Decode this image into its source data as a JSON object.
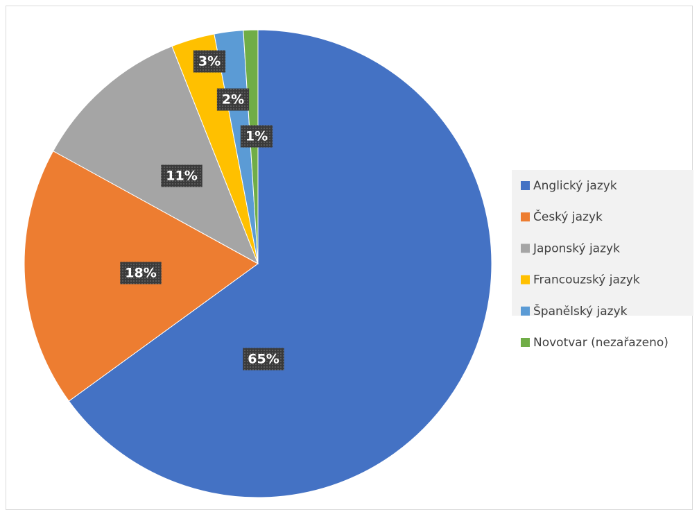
{
  "chart_data": {
    "type": "pie",
    "categories": [
      "Anglický jazyk",
      "Český jazyk",
      "Japonský jazyk",
      "Francouzský jazyk",
      "Španělský jazyk",
      "Novotvar (nezařazeno)"
    ],
    "values": [
      65,
      18,
      11,
      3,
      2,
      1
    ],
    "value_labels": [
      "65%",
      "18%",
      "11%",
      "3%",
      "2%",
      "1%"
    ],
    "colors": [
      "#4472c4",
      "#ed7d31",
      "#a5a5a5",
      "#ffc000",
      "#5b9bd5",
      "#70ad47"
    ],
    "legend": "right"
  }
}
